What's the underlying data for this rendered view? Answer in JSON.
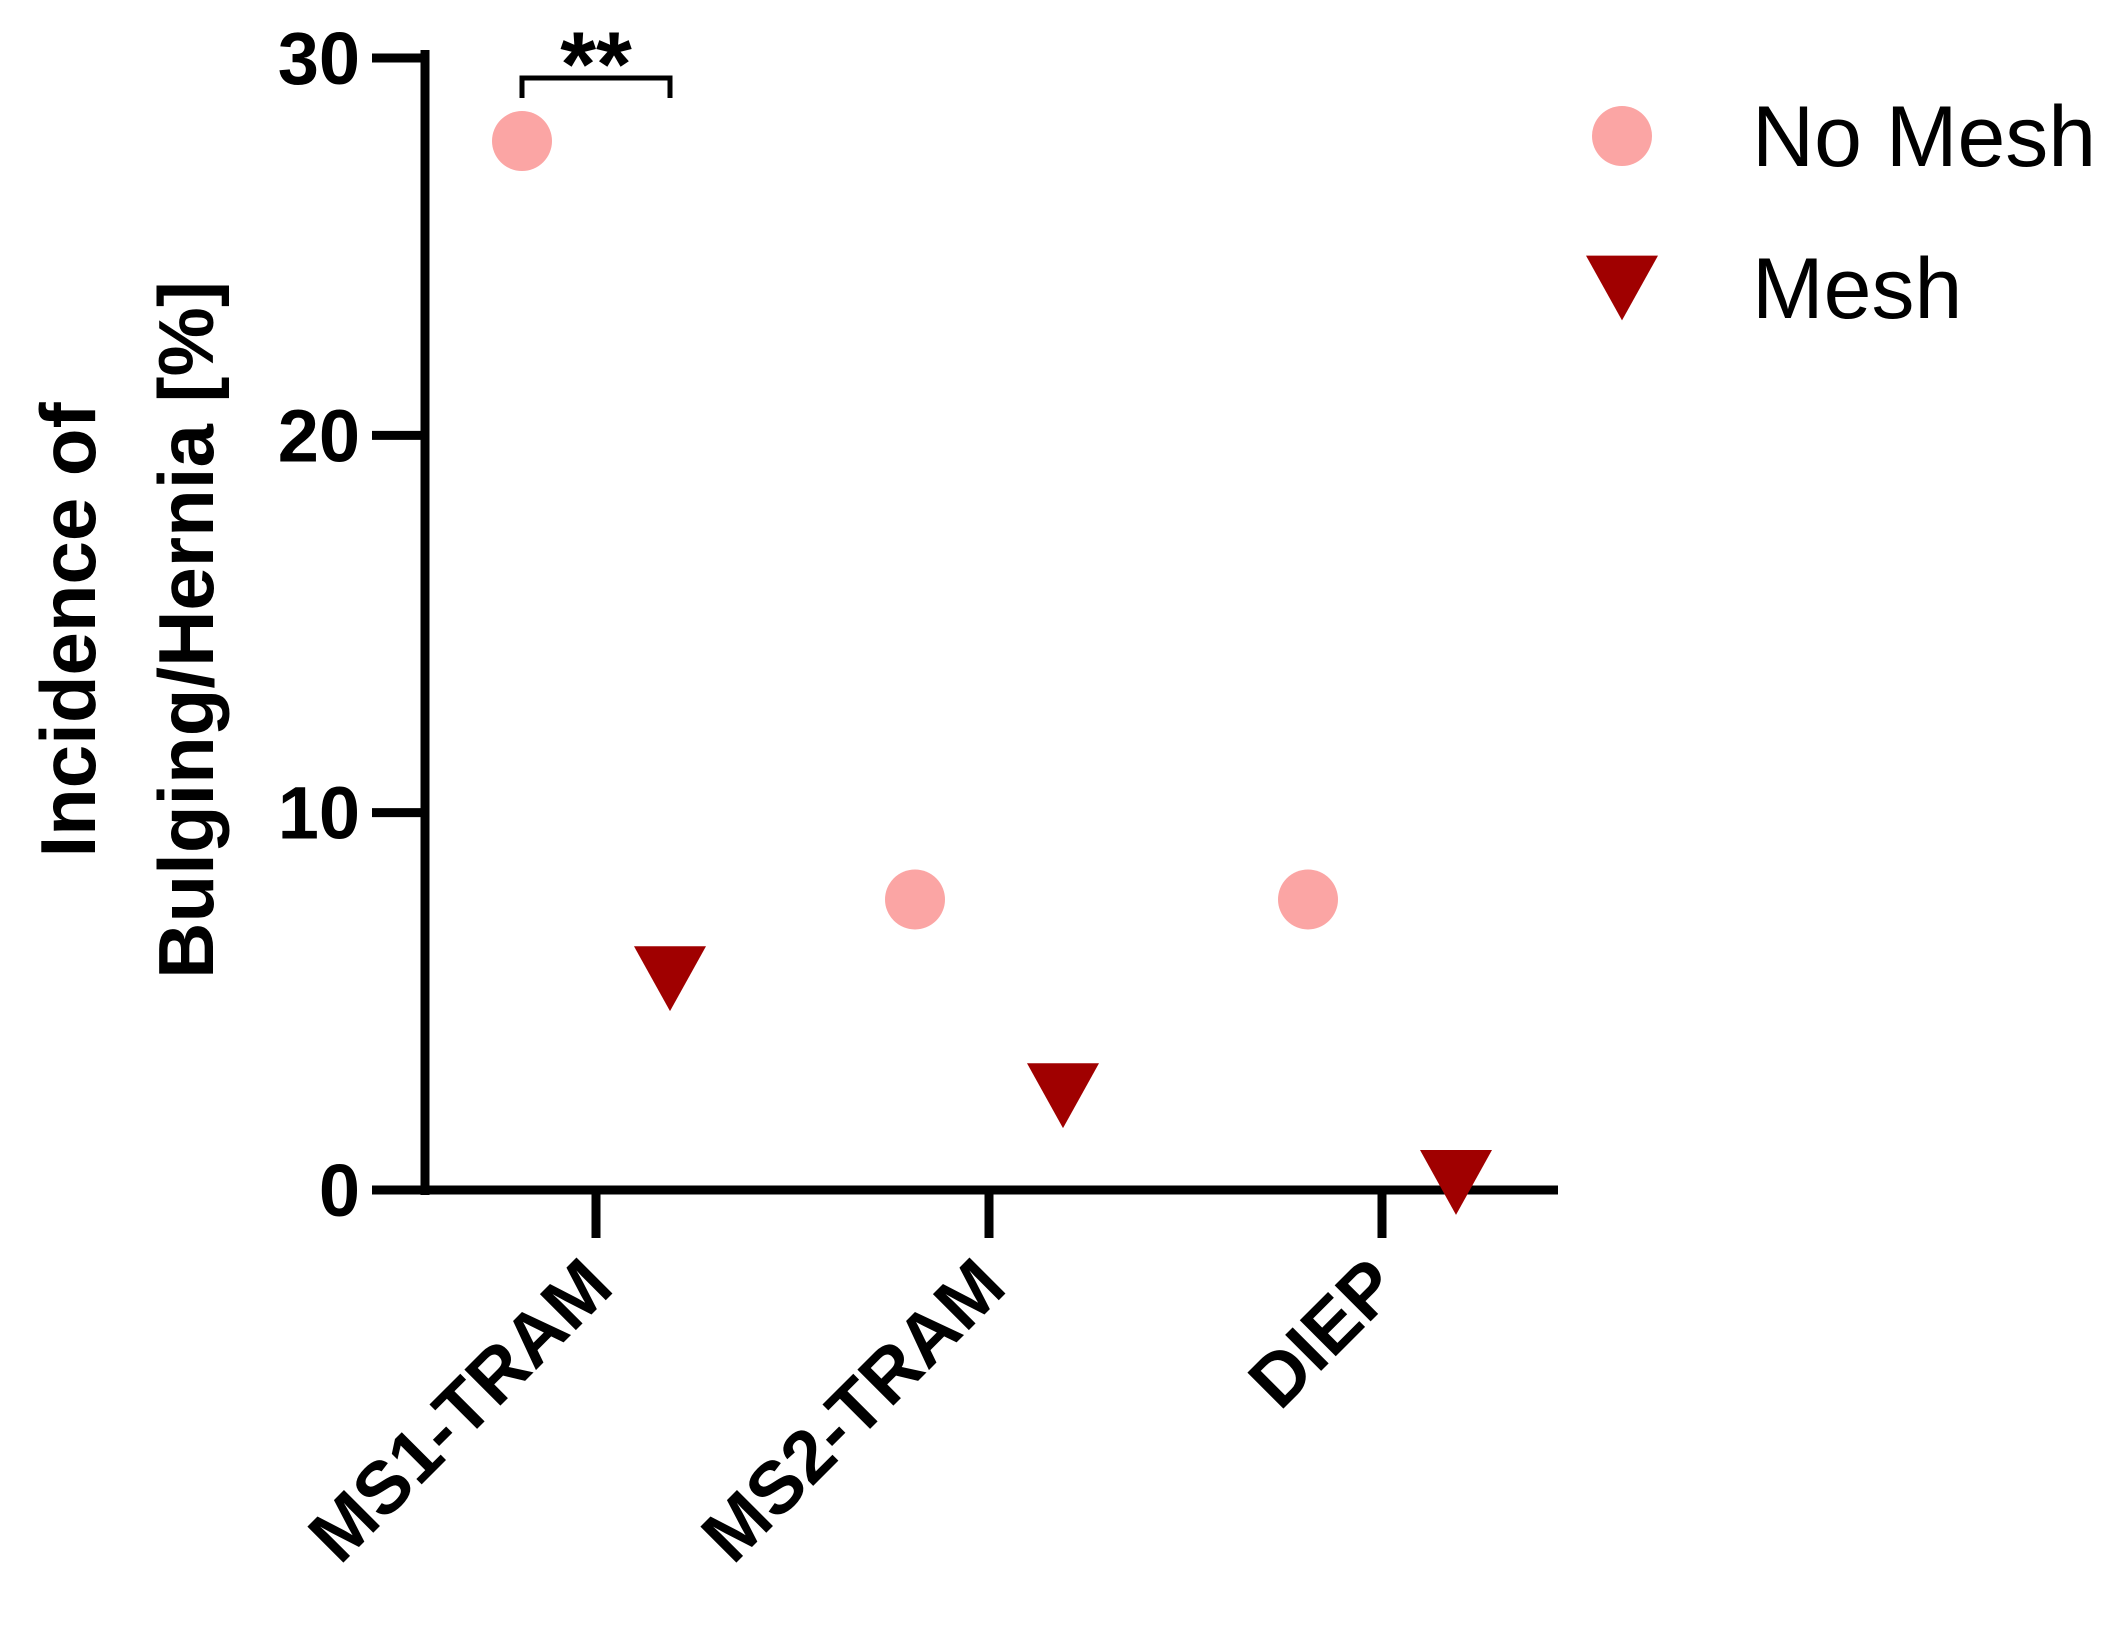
{
  "chart_data": {
    "type": "scatter",
    "title": "",
    "xlabel": "",
    "ylabel_lines": [
      "Incidence of",
      "Bulging/Hernia [%]"
    ],
    "categories": [
      "MS1-TRAM",
      "MS2-TRAM",
      "DIEP"
    ],
    "ylim": [
      0,
      30
    ],
    "yticks": [
      0,
      10,
      20,
      30
    ],
    "grid": false,
    "legend_position": "top-right",
    "series": [
      {
        "name": "No Mesh",
        "marker": "circle",
        "color": "#fba5a4",
        "values": [
          27.8,
          7.7,
          7.7
        ]
      },
      {
        "name": "Mesh",
        "marker": "triangle-down",
        "color": "#a00000",
        "values": [
          5.6,
          2.5,
          0.2
        ]
      }
    ],
    "annotations": [
      {
        "text": "**",
        "category": "MS1-TRAM",
        "between_series": [
          "No Mesh",
          "Mesh"
        ]
      }
    ]
  }
}
